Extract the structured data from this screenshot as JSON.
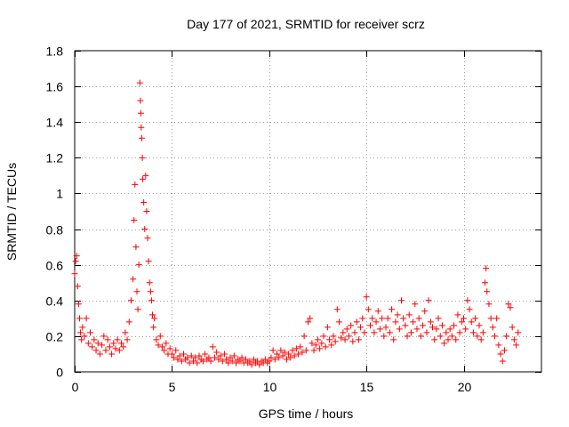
{
  "chart_data": {
    "type": "scatter",
    "title": "Day 177 of 2021, SRMTID for receiver scrz",
    "xlabel": "GPS time / hours",
    "ylabel": "SRMTID / TECUs",
    "xlim": [
      0,
      24
    ],
    "ylim": [
      0,
      1.8
    ],
    "xticks": [
      0,
      5,
      10,
      15,
      20
    ],
    "xtick_labels": [
      "0",
      "5",
      "10",
      "15",
      "20"
    ],
    "yticks": [
      0,
      0.2,
      0.4,
      0.6,
      0.8,
      1.0,
      1.2,
      1.4,
      1.6,
      1.8
    ],
    "ytick_labels": [
      "0",
      "0.2",
      "0.4",
      "0.6",
      "0.8",
      "1",
      "1.2",
      "1.4",
      "1.6",
      "1.8"
    ],
    "grid": true,
    "marker": "+",
    "marker_color": "#ff0000",
    "series": [
      {
        "name": "SRMTID",
        "points": [
          [
            0.0,
            0.55
          ],
          [
            0.05,
            0.62
          ],
          [
            0.1,
            0.65
          ],
          [
            0.15,
            0.48
          ],
          [
            0.2,
            0.38
          ],
          [
            0.25,
            0.3
          ],
          [
            0.3,
            0.22
          ],
          [
            0.35,
            0.18
          ],
          [
            0.4,
            0.25
          ],
          [
            0.5,
            0.2
          ],
          [
            0.6,
            0.3
          ],
          [
            0.7,
            0.16
          ],
          [
            0.8,
            0.22
          ],
          [
            0.9,
            0.14
          ],
          [
            1.0,
            0.18
          ],
          [
            1.1,
            0.12
          ],
          [
            1.2,
            0.16
          ],
          [
            1.3,
            0.1
          ],
          [
            1.4,
            0.15
          ],
          [
            1.5,
            0.2
          ],
          [
            1.6,
            0.12
          ],
          [
            1.7,
            0.18
          ],
          [
            1.8,
            0.14
          ],
          [
            1.9,
            0.1
          ],
          [
            2.0,
            0.16
          ],
          [
            2.1,
            0.13
          ],
          [
            2.2,
            0.18
          ],
          [
            2.3,
            0.12
          ],
          [
            2.4,
            0.16
          ],
          [
            2.5,
            0.14
          ],
          [
            2.6,
            0.22
          ],
          [
            2.7,
            0.18
          ],
          [
            2.8,
            0.28
          ],
          [
            2.9,
            0.4
          ],
          [
            3.0,
            0.52
          ],
          [
            3.05,
            0.85
          ],
          [
            3.1,
            1.05
          ],
          [
            3.15,
            0.7
          ],
          [
            3.2,
            0.45
          ],
          [
            3.25,
            0.35
          ],
          [
            3.3,
            0.6
          ],
          [
            3.35,
            1.62
          ],
          [
            3.38,
            1.52
          ],
          [
            3.4,
            1.45
          ],
          [
            3.42,
            1.37
          ],
          [
            3.45,
            1.31
          ],
          [
            3.48,
            1.2
          ],
          [
            3.5,
            1.08
          ],
          [
            3.55,
            0.95
          ],
          [
            3.6,
            0.8
          ],
          [
            3.65,
            1.1
          ],
          [
            3.7,
            0.9
          ],
          [
            3.75,
            0.75
          ],
          [
            3.8,
            0.62
          ],
          [
            3.85,
            0.5
          ],
          [
            3.9,
            0.45
          ],
          [
            3.95,
            0.4
          ],
          [
            4.0,
            0.32
          ],
          [
            4.05,
            0.25
          ],
          [
            4.1,
            0.3
          ],
          [
            4.2,
            0.18
          ],
          [
            4.3,
            0.15
          ],
          [
            4.4,
            0.2
          ],
          [
            4.5,
            0.14
          ],
          [
            4.6,
            0.12
          ],
          [
            4.7,
            0.16
          ],
          [
            4.8,
            0.1
          ],
          [
            4.9,
            0.13
          ],
          [
            5.0,
            0.1
          ],
          [
            5.1,
            0.08
          ],
          [
            5.2,
            0.12
          ],
          [
            5.3,
            0.07
          ],
          [
            5.4,
            0.09
          ],
          [
            5.5,
            0.06
          ],
          [
            5.6,
            0.1
          ],
          [
            5.7,
            0.07
          ],
          [
            5.8,
            0.08
          ],
          [
            5.9,
            0.05
          ],
          [
            6.0,
            0.09
          ],
          [
            6.1,
            0.06
          ],
          [
            6.2,
            0.08
          ],
          [
            6.3,
            0.05
          ],
          [
            6.4,
            0.09
          ],
          [
            6.5,
            0.07
          ],
          [
            6.6,
            0.06
          ],
          [
            6.7,
            0.1
          ],
          [
            6.8,
            0.07
          ],
          [
            6.9,
            0.08
          ],
          [
            7.0,
            0.06
          ],
          [
            7.1,
            0.14
          ],
          [
            7.2,
            0.08
          ],
          [
            7.3,
            0.11
          ],
          [
            7.4,
            0.07
          ],
          [
            7.5,
            0.09
          ],
          [
            7.6,
            0.06
          ],
          [
            7.7,
            0.1
          ],
          [
            7.8,
            0.07
          ],
          [
            7.9,
            0.05
          ],
          [
            8.0,
            0.08
          ],
          [
            8.1,
            0.06
          ],
          [
            8.2,
            0.09
          ],
          [
            8.3,
            0.05
          ],
          [
            8.4,
            0.07
          ],
          [
            8.5,
            0.06
          ],
          [
            8.6,
            0.08
          ],
          [
            8.7,
            0.05
          ],
          [
            8.8,
            0.07
          ],
          [
            8.9,
            0.05
          ],
          [
            9.0,
            0.06
          ],
          [
            9.1,
            0.04
          ],
          [
            9.2,
            0.07
          ],
          [
            9.3,
            0.05
          ],
          [
            9.4,
            0.06
          ],
          [
            9.5,
            0.04
          ],
          [
            9.6,
            0.06
          ],
          [
            9.7,
            0.05
          ],
          [
            9.8,
            0.07
          ],
          [
            9.9,
            0.05
          ],
          [
            10.0,
            0.06
          ],
          [
            10.1,
            0.08
          ],
          [
            10.2,
            0.12
          ],
          [
            10.3,
            0.07
          ],
          [
            10.4,
            0.1
          ],
          [
            10.5,
            0.08
          ],
          [
            10.6,
            0.12
          ],
          [
            10.7,
            0.09
          ],
          [
            10.8,
            0.11
          ],
          [
            10.9,
            0.07
          ],
          [
            11.0,
            0.1
          ],
          [
            11.1,
            0.08
          ],
          [
            11.2,
            0.12
          ],
          [
            11.3,
            0.09
          ],
          [
            11.4,
            0.13
          ],
          [
            11.5,
            0.1
          ],
          [
            11.6,
            0.14
          ],
          [
            11.7,
            0.11
          ],
          [
            11.8,
            0.2
          ],
          [
            11.9,
            0.12
          ],
          [
            12.0,
            0.28
          ],
          [
            12.1,
            0.3
          ],
          [
            12.2,
            0.16
          ],
          [
            12.3,
            0.12
          ],
          [
            12.4,
            0.15
          ],
          [
            12.5,
            0.18
          ],
          [
            12.6,
            0.13
          ],
          [
            12.7,
            0.16
          ],
          [
            12.8,
            0.2
          ],
          [
            12.9,
            0.14
          ],
          [
            13.0,
            0.25
          ],
          [
            13.1,
            0.18
          ],
          [
            13.2,
            0.15
          ],
          [
            13.3,
            0.2
          ],
          [
            13.4,
            0.17
          ],
          [
            13.5,
            0.35
          ],
          [
            13.6,
            0.28
          ],
          [
            13.7,
            0.19
          ],
          [
            13.8,
            0.22
          ],
          [
            13.9,
            0.18
          ],
          [
            14.0,
            0.24
          ],
          [
            14.1,
            0.2
          ],
          [
            14.2,
            0.26
          ],
          [
            14.3,
            0.17
          ],
          [
            14.4,
            0.22
          ],
          [
            14.5,
            0.28
          ],
          [
            14.6,
            0.18
          ],
          [
            14.7,
            0.25
          ],
          [
            14.8,
            0.3
          ],
          [
            14.9,
            0.22
          ],
          [
            15.0,
            0.42
          ],
          [
            15.1,
            0.35
          ],
          [
            15.2,
            0.26
          ],
          [
            15.3,
            0.3
          ],
          [
            15.4,
            0.22
          ],
          [
            15.5,
            0.28
          ],
          [
            15.6,
            0.34
          ],
          [
            15.7,
            0.24
          ],
          [
            15.8,
            0.3
          ],
          [
            15.9,
            0.2
          ],
          [
            16.0,
            0.25
          ],
          [
            16.1,
            0.3
          ],
          [
            16.2,
            0.22
          ],
          [
            16.3,
            0.35
          ],
          [
            16.4,
            0.18
          ],
          [
            16.5,
            0.28
          ],
          [
            16.6,
            0.32
          ],
          [
            16.7,
            0.24
          ],
          [
            16.8,
            0.4
          ],
          [
            16.9,
            0.3
          ],
          [
            17.0,
            0.26
          ],
          [
            17.1,
            0.2
          ],
          [
            17.2,
            0.32
          ],
          [
            17.3,
            0.22
          ],
          [
            17.4,
            0.28
          ],
          [
            17.5,
            0.38
          ],
          [
            17.6,
            0.24
          ],
          [
            17.7,
            0.3
          ],
          [
            17.8,
            0.2
          ],
          [
            17.9,
            0.26
          ],
          [
            18.0,
            0.34
          ],
          [
            18.1,
            0.22
          ],
          [
            18.2,
            0.4
          ],
          [
            18.3,
            0.28
          ],
          [
            18.4,
            0.25
          ],
          [
            18.5,
            0.18
          ],
          [
            18.6,
            0.24
          ],
          [
            18.7,
            0.3
          ],
          [
            18.8,
            0.2
          ],
          [
            18.9,
            0.26
          ],
          [
            19.0,
            0.16
          ],
          [
            19.1,
            0.22
          ],
          [
            19.2,
            0.18
          ],
          [
            19.3,
            0.24
          ],
          [
            19.4,
            0.2
          ],
          [
            19.5,
            0.26
          ],
          [
            19.6,
            0.18
          ],
          [
            19.7,
            0.32
          ],
          [
            19.8,
            0.22
          ],
          [
            19.9,
            0.28
          ],
          [
            20.0,
            0.3
          ],
          [
            20.1,
            0.24
          ],
          [
            20.2,
            0.4
          ],
          [
            20.3,
            0.35
          ],
          [
            20.4,
            0.28
          ],
          [
            20.5,
            0.22
          ],
          [
            20.6,
            0.3
          ],
          [
            20.7,
            0.2
          ],
          [
            20.8,
            0.26
          ],
          [
            20.9,
            0.18
          ],
          [
            21.0,
            0.22
          ],
          [
            21.1,
            0.5
          ],
          [
            21.15,
            0.58
          ],
          [
            21.2,
            0.45
          ],
          [
            21.3,
            0.38
          ],
          [
            21.4,
            0.3
          ],
          [
            21.5,
            0.25
          ],
          [
            21.6,
            0.2
          ],
          [
            21.7,
            0.3
          ],
          [
            21.8,
            0.15
          ],
          [
            21.9,
            0.1
          ],
          [
            22.0,
            0.06
          ],
          [
            22.1,
            0.12
          ],
          [
            22.2,
            0.2
          ],
          [
            22.3,
            0.38
          ],
          [
            22.4,
            0.36
          ],
          [
            22.5,
            0.25
          ],
          [
            22.6,
            0.18
          ],
          [
            22.7,
            0.15
          ],
          [
            22.8,
            0.22
          ]
        ]
      }
    ]
  }
}
